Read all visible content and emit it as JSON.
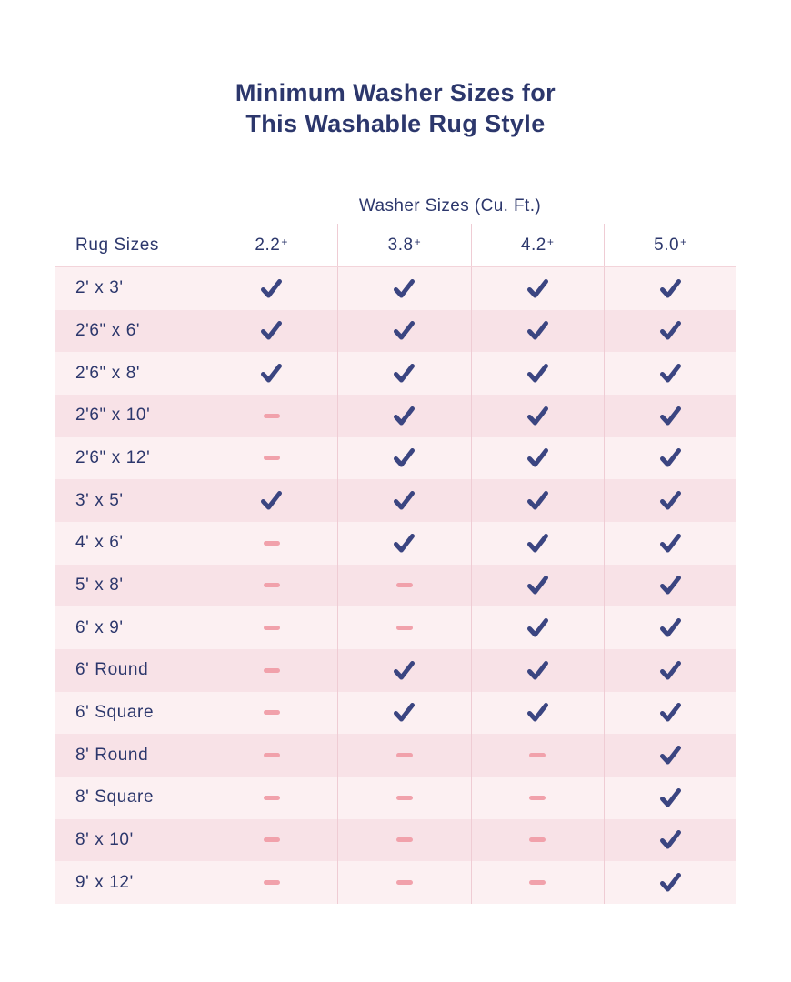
{
  "title": {
    "line1": "Minimum Washer Sizes for",
    "line2": "This Washable Rug Style"
  },
  "chart_data": {
    "type": "table",
    "title": "Minimum Washer Sizes for This Washable Rug Style",
    "group_header": "Washer Sizes (Cu. Ft.)",
    "row_header": "Rug Sizes",
    "washer_size_columns": [
      "2.2+",
      "3.8+",
      "4.2+",
      "5.0+"
    ],
    "cell_symbols": {
      "check": "washer fits (checkmark)",
      "dash": "washer too small (dash)"
    },
    "rows": [
      {
        "rug_size": "2' x 3'",
        "fits": [
          "check",
          "check",
          "check",
          "check"
        ]
      },
      {
        "rug_size": "2'6\" x 6'",
        "fits": [
          "check",
          "check",
          "check",
          "check"
        ]
      },
      {
        "rug_size": "2'6\" x 8'",
        "fits": [
          "check",
          "check",
          "check",
          "check"
        ]
      },
      {
        "rug_size": "2'6\" x 10'",
        "fits": [
          "dash",
          "check",
          "check",
          "check"
        ]
      },
      {
        "rug_size": "2'6\" x 12'",
        "fits": [
          "dash",
          "check",
          "check",
          "check"
        ]
      },
      {
        "rug_size": "3' x 5'",
        "fits": [
          "check",
          "check",
          "check",
          "check"
        ]
      },
      {
        "rug_size": "4' x 6'",
        "fits": [
          "dash",
          "check",
          "check",
          "check"
        ]
      },
      {
        "rug_size": "5' x 8'",
        "fits": [
          "dash",
          "dash",
          "check",
          "check"
        ]
      },
      {
        "rug_size": "6' x 9'",
        "fits": [
          "dash",
          "dash",
          "check",
          "check"
        ]
      },
      {
        "rug_size": "6' Round",
        "fits": [
          "dash",
          "check",
          "check",
          "check"
        ]
      },
      {
        "rug_size": "6' Square",
        "fits": [
          "dash",
          "check",
          "check",
          "check"
        ]
      },
      {
        "rug_size": "8' Round",
        "fits": [
          "dash",
          "dash",
          "dash",
          "check"
        ]
      },
      {
        "rug_size": "8' Square",
        "fits": [
          "dash",
          "dash",
          "dash",
          "check"
        ]
      },
      {
        "rug_size": "8' x 10'",
        "fits": [
          "dash",
          "dash",
          "dash",
          "check"
        ]
      },
      {
        "rug_size": "9' x 12'",
        "fits": [
          "dash",
          "dash",
          "dash",
          "check"
        ]
      }
    ]
  },
  "colors": {
    "navy_text": "#2c376c",
    "check": "#3b4581",
    "dash": "#f1a1ab",
    "row_light": "#fcf0f2",
    "row_dark": "#f8e2e7",
    "divider": "#efccd4",
    "background": "#ffffff"
  }
}
